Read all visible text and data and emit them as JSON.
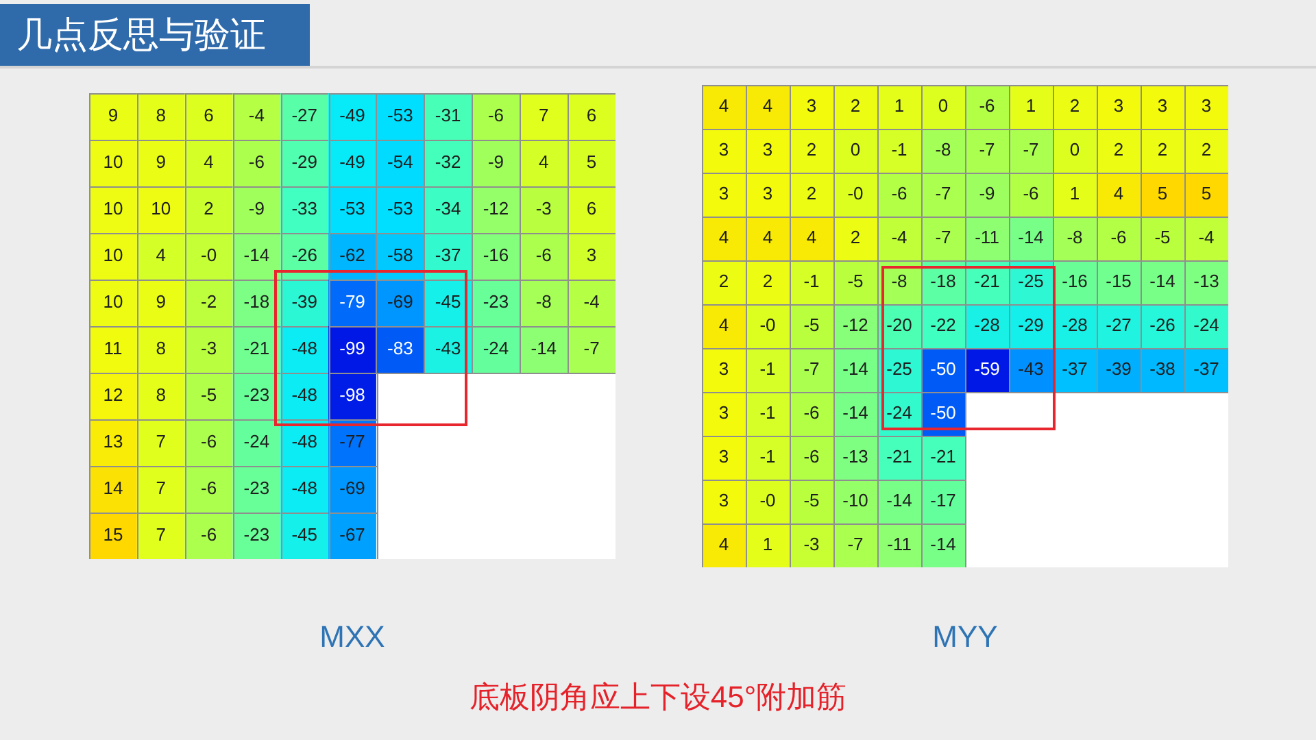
{
  "chart_data": [
    {
      "type": "other",
      "title": "几点反思与验证",
      "annotations": [
        "底板阴角应上下设45°附加筋"
      ]
    },
    {
      "type": "heatmap",
      "title": "MXX",
      "categories": [
        null,
        null,
        null,
        null,
        null,
        null,
        null,
        null,
        null,
        null,
        null
      ],
      "y_categories": [
        null,
        null,
        null,
        null,
        null,
        null,
        null,
        null,
        null,
        null
      ],
      "cells": [
        [
          9,
          8,
          6,
          -4,
          -27,
          -49,
          -53,
          -31,
          -6,
          7,
          6
        ],
        [
          10,
          9,
          4,
          -6,
          -29,
          -49,
          -54,
          -32,
          -9,
          4,
          5
        ],
        [
          10,
          10,
          2,
          -9,
          -33,
          -53,
          -53,
          -34,
          -12,
          -3,
          6
        ],
        [
          10,
          4,
          0,
          -14,
          -26,
          -62,
          -58,
          -37,
          -16,
          -6,
          3
        ],
        [
          10,
          9,
          -2,
          -18,
          -39,
          -79,
          -69,
          -45,
          -23,
          -8,
          -4
        ],
        [
          11,
          8,
          -3,
          -21,
          -48,
          -99,
          -83,
          -43,
          -24,
          -14,
          -7
        ],
        [
          12,
          8,
          -5,
          -23,
          -48,
          -98,
          null,
          null,
          null,
          null,
          null
        ],
        [
          13,
          7,
          -6,
          -24,
          -48,
          -77,
          null,
          null,
          null,
          null,
          null
        ],
        [
          14,
          7,
          -6,
          -23,
          -48,
          -69,
          null,
          null,
          null,
          null,
          null
        ],
        [
          15,
          7,
          -6,
          -23,
          -45,
          -67,
          null,
          null,
          null,
          null,
          null
        ]
      ],
      "cell_labels": [
        [
          "9",
          "8",
          "6",
          "-4",
          "-27",
          "-49",
          "-53",
          "-31",
          "-6",
          "7",
          "6"
        ],
        [
          "10",
          "9",
          "4",
          "-6",
          "-29",
          "-49",
          "-54",
          "-32",
          "-9",
          "4",
          "5"
        ],
        [
          "10",
          "10",
          "2",
          "-9",
          "-33",
          "-53",
          "-53",
          "-34",
          "-12",
          "-3",
          "6"
        ],
        [
          "10",
          "4",
          "-0",
          "-14",
          "-26",
          "-62",
          "-58",
          "-37",
          "-16",
          "-6",
          "3"
        ],
        [
          "10",
          "9",
          "-2",
          "-18",
          "-39",
          "-79",
          "-69",
          "-45",
          "-23",
          "-8",
          "-4"
        ],
        [
          "11",
          "8",
          "-3",
          "-21",
          "-48",
          "-99",
          "-83",
          "-43",
          "-24",
          "-14",
          "-7"
        ],
        [
          "12",
          "8",
          "-5",
          "-23",
          "-48",
          "-98",
          null,
          null,
          null,
          null,
          null
        ],
        [
          "13",
          "7",
          "-6",
          "-24",
          "-48",
          "-77",
          null,
          null,
          null,
          null,
          null
        ],
        [
          "14",
          "7",
          "-6",
          "-23",
          "-48",
          "-69",
          null,
          null,
          null,
          null,
          null
        ],
        [
          "15",
          "7",
          "-6",
          "-23",
          "-45",
          "-67",
          null,
          null,
          null,
          null,
          null
        ]
      ],
      "data_labels": true,
      "tick_labels": false
    },
    {
      "type": "heatmap",
      "title": "MYY",
      "categories": [
        null,
        null,
        null,
        null,
        null,
        null,
        null,
        null,
        null,
        null,
        null,
        null
      ],
      "y_categories": [
        null,
        null,
        null,
        null,
        null,
        null,
        null,
        null,
        null,
        null,
        null
      ],
      "cells": [
        [
          4,
          4,
          3,
          2,
          1,
          0,
          -6,
          1,
          2,
          3,
          3,
          3
        ],
        [
          3,
          3,
          2,
          0,
          -1,
          -8,
          -7,
          -7,
          0,
          2,
          2,
          2
        ],
        [
          3,
          3,
          2,
          0,
          -6,
          -7,
          -9,
          -6,
          1,
          4,
          5,
          5
        ],
        [
          4,
          4,
          4,
          2,
          -4,
          -7,
          -11,
          -14,
          -8,
          -6,
          -5,
          -4
        ],
        [
          2,
          2,
          -1,
          -5,
          -8,
          -18,
          -21,
          -25,
          -16,
          -15,
          -14,
          -13
        ],
        [
          4,
          0,
          -5,
          -12,
          -20,
          -22,
          -28,
          -29,
          -28,
          -27,
          -26,
          -24
        ],
        [
          3,
          -1,
          -7,
          -14,
          -25,
          -50,
          -59,
          -43,
          -37,
          -39,
          -38,
          -37
        ],
        [
          3,
          -1,
          -6,
          -14,
          -24,
          -50,
          null,
          null,
          null,
          null,
          null,
          null
        ],
        [
          3,
          -1,
          -6,
          -13,
          -21,
          -21,
          null,
          null,
          null,
          null,
          null,
          null
        ],
        [
          3,
          0,
          -5,
          -10,
          -14,
          -17,
          null,
          null,
          null,
          null,
          null,
          null
        ],
        [
          4,
          1,
          -3,
          -7,
          -11,
          -14,
          null,
          null,
          null,
          null,
          null,
          null
        ]
      ],
      "cell_labels": [
        [
          "4",
          "4",
          "3",
          "2",
          "1",
          "0",
          "-6",
          "1",
          "2",
          "3",
          "3",
          "3"
        ],
        [
          "3",
          "3",
          "2",
          "0",
          "-1",
          "-8",
          "-7",
          "-7",
          "0",
          "2",
          "2",
          "2"
        ],
        [
          "3",
          "3",
          "2",
          "-0",
          "-6",
          "-7",
          "-9",
          "-6",
          "1",
          "4",
          "5",
          "5"
        ],
        [
          "4",
          "4",
          "4",
          "2",
          "-4",
          "-7",
          "-11",
          "-14",
          "-8",
          "-6",
          "-5",
          "-4"
        ],
        [
          "2",
          "2",
          "-1",
          "-5",
          "-8",
          "-18",
          "-21",
          "-25",
          "-16",
          "-15",
          "-14",
          "-13"
        ],
        [
          "4",
          "-0",
          "-5",
          "-12",
          "-20",
          "-22",
          "-28",
          "-29",
          "-28",
          "-27",
          "-26",
          "-24"
        ],
        [
          "3",
          "-1",
          "-7",
          "-14",
          "-25",
          "-50",
          "-59",
          "-43",
          "-37",
          "-39",
          "-38",
          "-37"
        ],
        [
          "3",
          "-1",
          "-6",
          "-14",
          "-24",
          "-50",
          null,
          null,
          null,
          null,
          null,
          null
        ],
        [
          "3",
          "-1",
          "-6",
          "-13",
          "-21",
          "-21",
          null,
          null,
          null,
          null,
          null,
          null
        ],
        [
          "3",
          "-0",
          "-5",
          "-10",
          "-14",
          "-17",
          null,
          null,
          null,
          null,
          null,
          null
        ],
        [
          "4",
          "1",
          "-3",
          "-7",
          "-11",
          "-14",
          null,
          null,
          null,
          null,
          null,
          null
        ]
      ],
      "data_labels": true,
      "tick_labels": false
    }
  ]
}
